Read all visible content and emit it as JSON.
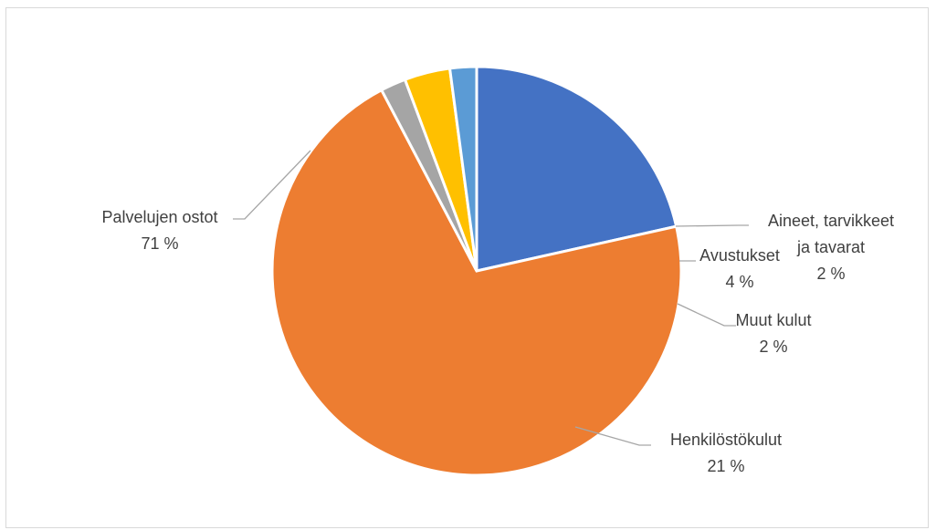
{
  "chart_data": {
    "type": "pie",
    "start_angle_deg": 90,
    "direction": "clockwise",
    "slices": [
      {
        "label_lines": [
          "Henkilöstökulut"
        ],
        "pct_label": "21 %",
        "value": 21.5,
        "color": "#4472c4"
      },
      {
        "label_lines": [
          "Palvelujen ostot"
        ],
        "pct_label": "71 %",
        "value": 70.8,
        "color": "#ed7d31"
      },
      {
        "label_lines": [
          "Aineet, tarvikkeet",
          "ja tavarat"
        ],
        "pct_label": "2 %",
        "value": 2.0,
        "color": "#a5a5a5"
      },
      {
        "label_lines": [
          "Avustukset"
        ],
        "pct_label": "4 %",
        "value": 3.6,
        "color": "#ffc000"
      },
      {
        "label_lines": [
          "Muut kulut"
        ],
        "pct_label": "2 %",
        "value": 2.1,
        "color": "#5b9bd5"
      }
    ]
  }
}
